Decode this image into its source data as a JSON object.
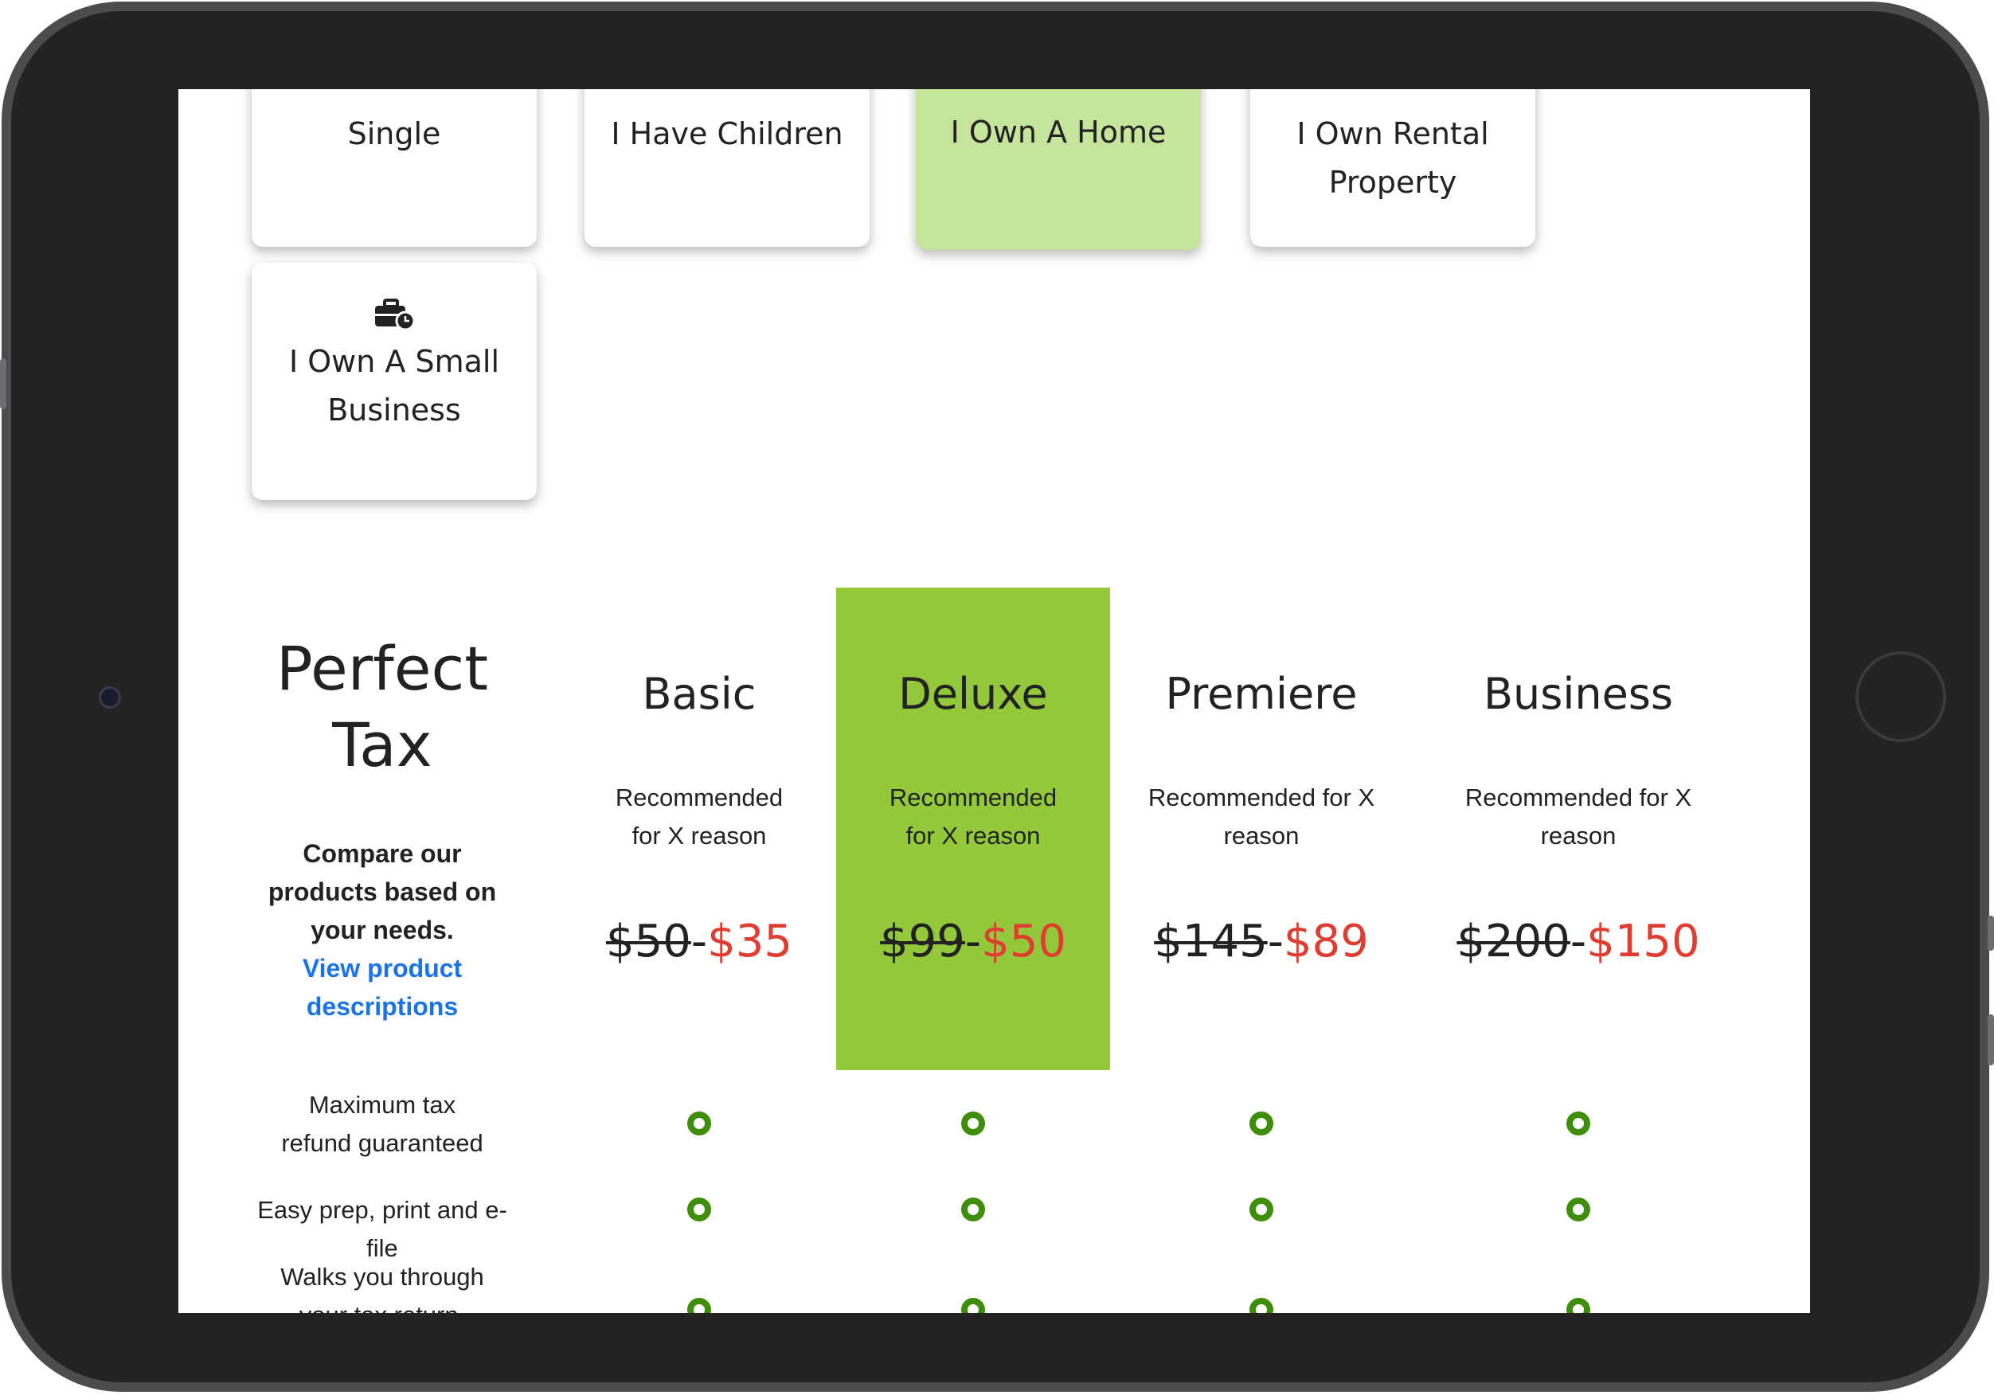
{
  "situations": [
    {
      "label": "Single",
      "selected": false
    },
    {
      "label": "I Have Children",
      "selected": false
    },
    {
      "label": "I Own A Home",
      "selected": true
    },
    {
      "label": "I Own Rental Property",
      "selected": false
    },
    {
      "label": "I Own A Small Business",
      "icon": "briefcase-clock-icon",
      "selected": false
    }
  ],
  "compare": {
    "title": "Perfect Tax",
    "text": "Compare our products based on your needs.",
    "link": "View product descriptions"
  },
  "products": [
    {
      "name": "Basic",
      "reason": "Recommended for X reason",
      "old_price": "$50",
      "new_price": "$35",
      "highlighted": false
    },
    {
      "name": "Deluxe",
      "reason": "Recommended for X reason",
      "old_price": "$99",
      "new_price": "$50",
      "highlighted": true
    },
    {
      "name": "Premiere",
      "reason": "Recommended for X reason",
      "old_price": "$145",
      "new_price": "$89",
      "highlighted": false
    },
    {
      "name": "Business",
      "reason": "Recommended for X reason",
      "old_price": "$200",
      "new_price": "$150",
      "highlighted": false
    }
  ],
  "price_separator": "-",
  "features": [
    {
      "label": "Maximum tax refund guaranteed",
      "included": [
        true,
        true,
        true,
        true
      ]
    },
    {
      "label": "Easy prep, print and e-file",
      "included": [
        true,
        true,
        true,
        true
      ]
    },
    {
      "label": "Walks you through your tax return, double",
      "included": [
        true,
        true,
        true,
        true
      ]
    }
  ],
  "colors": {
    "selected_card": "#c5e49c",
    "highlight_column": "#92c83a",
    "sale_price": "#e03c31",
    "link": "#1a73e8",
    "check": "#3e8e0b"
  }
}
